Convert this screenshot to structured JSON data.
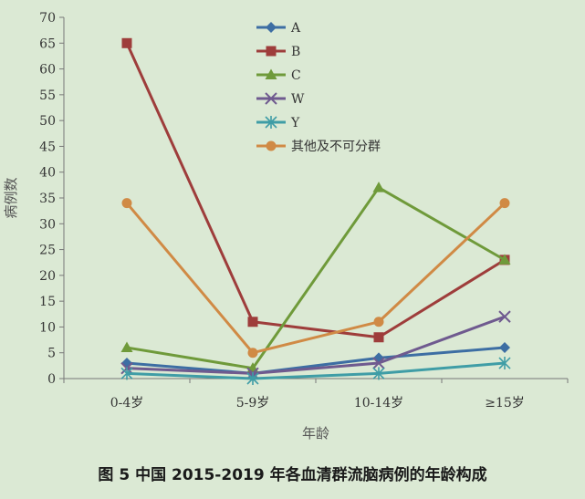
{
  "caption": "图 5  中国 2015-2019 年各血清群流脑病例的年龄构成",
  "chart_data": {
    "type": "line",
    "title": "",
    "xlabel": "年龄",
    "ylabel": "病例数",
    "categories": [
      "0-4岁",
      "5-9岁",
      "10-14岁",
      "≥15岁"
    ],
    "ylim": [
      0,
      70
    ],
    "yticks": [
      0,
      5,
      10,
      15,
      20,
      25,
      30,
      35,
      40,
      45,
      50,
      55,
      60,
      65,
      70
    ],
    "grid": false,
    "legend_position": "top-center",
    "series": [
      {
        "name": "A",
        "values": [
          3,
          1,
          4,
          6
        ],
        "color": "#3d6ea3",
        "marker": "diamond"
      },
      {
        "name": "B",
        "values": [
          65,
          11,
          8,
          23
        ],
        "color": "#9e3d3b",
        "marker": "square"
      },
      {
        "name": "C",
        "values": [
          6,
          2,
          37,
          23
        ],
        "color": "#6f9a3a",
        "marker": "triangle"
      },
      {
        "name": "W",
        "values": [
          2,
          1,
          3,
          12
        ],
        "color": "#6f5a8f",
        "marker": "x"
      },
      {
        "name": "Y",
        "values": [
          1,
          0,
          1,
          3
        ],
        "color": "#3f9da6",
        "marker": "star"
      },
      {
        "name": "其他及不可分群",
        "values": [
          34,
          5,
          11,
          34
        ],
        "color": "#d08a45",
        "marker": "circle"
      }
    ]
  }
}
